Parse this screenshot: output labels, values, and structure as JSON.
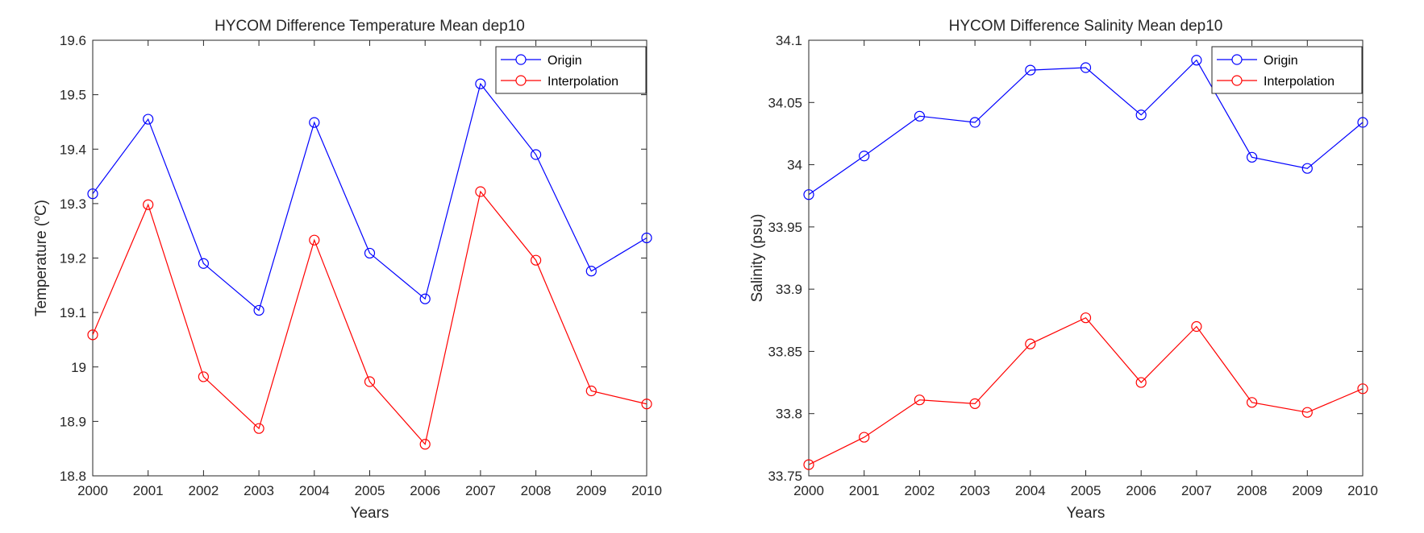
{
  "chart_data": [
    {
      "type": "line",
      "title": "HYCOM Difference Temperature Mean dep10",
      "xlabel": "Years",
      "ylabel_main": "Temperature (",
      "ylabel_sup": "o",
      "ylabel_tail": "C)",
      "x": [
        2000,
        2001,
        2002,
        2003,
        2004,
        2005,
        2006,
        2007,
        2008,
        2009,
        2010
      ],
      "xticks": [
        "2000",
        "2001",
        "2002",
        "2003",
        "2004",
        "2005",
        "2006",
        "2007",
        "2008",
        "2009",
        "2010"
      ],
      "xlim": [
        2000,
        2010
      ],
      "ylim": [
        18.8,
        19.6
      ],
      "yticks": [
        18.8,
        18.9,
        19.0,
        19.1,
        19.2,
        19.3,
        19.4,
        19.5,
        19.6
      ],
      "ytick_labels": [
        "18.8",
        "18.9",
        "19",
        "19.1",
        "19.2",
        "19.3",
        "19.4",
        "19.5",
        "19.6"
      ],
      "grid": false,
      "legend_position": "top-right",
      "series": [
        {
          "name": "Origin",
          "color": "#0000ff",
          "marker": "circle",
          "values": [
            19.318,
            19.455,
            19.19,
            19.104,
            19.449,
            19.209,
            19.125,
            19.52,
            19.39,
            19.176,
            19.237
          ]
        },
        {
          "name": "Interpolation",
          "color": "#ff0000",
          "marker": "circle",
          "values": [
            19.059,
            19.298,
            18.982,
            18.887,
            19.233,
            18.973,
            18.858,
            19.322,
            19.196,
            18.956,
            18.932
          ]
        }
      ]
    },
    {
      "type": "line",
      "title": "HYCOM Difference Salinity Mean dep10",
      "xlabel": "Years",
      "ylabel": "Salinity (psu)",
      "x": [
        2000,
        2001,
        2002,
        2003,
        2004,
        2005,
        2006,
        2007,
        2008,
        2009,
        2010
      ],
      "xticks": [
        "2000",
        "2001",
        "2002",
        "2003",
        "2004",
        "2005",
        "2006",
        "2007",
        "2008",
        "2009",
        "2010"
      ],
      "xlim": [
        2000,
        2010
      ],
      "ylim": [
        33.75,
        34.1
      ],
      "yticks": [
        33.75,
        33.8,
        33.85,
        33.9,
        33.95,
        34.0,
        34.05,
        34.1
      ],
      "ytick_labels": [
        "33.75",
        "33.8",
        "33.85",
        "33.9",
        "33.95",
        "34",
        "34.05",
        "34.1"
      ],
      "grid": false,
      "legend_position": "top-right",
      "series": [
        {
          "name": "Origin",
          "color": "#0000ff",
          "marker": "circle",
          "values": [
            33.976,
            34.007,
            34.039,
            34.034,
            34.076,
            34.078,
            34.04,
            34.084,
            34.006,
            33.997,
            34.034
          ]
        },
        {
          "name": "Interpolation",
          "color": "#ff0000",
          "marker": "circle",
          "values": [
            33.759,
            33.781,
            33.811,
            33.808,
            33.856,
            33.877,
            33.825,
            33.87,
            33.809,
            33.801,
            33.82
          ]
        }
      ]
    }
  ]
}
